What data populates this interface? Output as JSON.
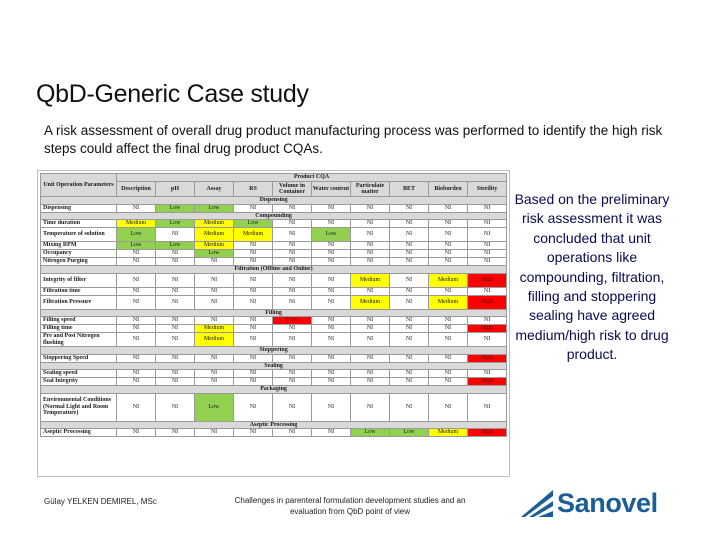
{
  "title": "QbD-Generic Case study",
  "intro": "A risk assessment of overall drug product manufacturing process was performed to identify the high risk steps could affect the final drug product CQAs.",
  "table": {
    "corner_label": "Unit Operation Parameters",
    "group_header": "Product CQA",
    "columns": [
      "Description",
      "pH",
      "Assay",
      "RS",
      "Volume in Container",
      "Water content",
      "Particulate matter",
      "BET",
      "Bioburden",
      "Sterility"
    ],
    "rows": [
      {
        "type": "section",
        "label": "Dispensing"
      },
      {
        "type": "row",
        "param": "Dispensing",
        "values": [
          "NI",
          "Low",
          "Low",
          "NI",
          "NI",
          "NI",
          "NI",
          "NI",
          "NI",
          "NI"
        ]
      },
      {
        "type": "section",
        "label": "Compounding"
      },
      {
        "type": "row",
        "param": "Time duration",
        "values": [
          "Medium",
          "Low",
          "Medium",
          "Low",
          "NI",
          "NI",
          "NI",
          "NI",
          "NI",
          "NI"
        ]
      },
      {
        "type": "row",
        "param": "Temperature of solution",
        "values": [
          "Low",
          "NI",
          "Medium",
          "Medium",
          "NI",
          "Low",
          "NI",
          "NI",
          "NI",
          "NI"
        ]
      },
      {
        "type": "row",
        "param": "Mixing RPM",
        "values": [
          "Low",
          "Low",
          "Medium",
          "NI",
          "NI",
          "NI",
          "NI",
          "NI",
          "NI",
          "NI"
        ]
      },
      {
        "type": "row",
        "param": "Occupancy",
        "values": [
          "NI",
          "NI",
          "Low",
          "NI",
          "NI",
          "NI",
          "NI",
          "NI",
          "NI",
          "NI"
        ]
      },
      {
        "type": "row",
        "param": "Nitrogen Purging",
        "values": [
          "NI",
          "NI",
          "NI",
          "NI",
          "NI",
          "NI",
          "NI",
          "NI",
          "NI",
          "NI"
        ]
      },
      {
        "type": "section",
        "label": "Filtration (Offline and Online)"
      },
      {
        "type": "row",
        "param": "Integrity of filter",
        "values": [
          "NI",
          "NI",
          "NI",
          "NI",
          "NI",
          "NI",
          "Medium",
          "NI",
          "Medium",
          "High"
        ]
      },
      {
        "type": "row",
        "param": "Filtration time",
        "values": [
          "NI",
          "NI",
          "NI",
          "NI",
          "NI",
          "NI",
          "NI",
          "NI",
          "NI",
          "NI"
        ]
      },
      {
        "type": "row",
        "param": "Filtration Pressure",
        "values": [
          "NI",
          "NI",
          "NI",
          "NI",
          "NI",
          "NI",
          "Medium",
          "NI",
          "Medium",
          "High"
        ]
      },
      {
        "type": "section",
        "label": "Filling"
      },
      {
        "type": "row",
        "param": "Filling speed",
        "values": [
          "NI",
          "NI",
          "NI",
          "NI",
          "High",
          "NI",
          "NI",
          "NI",
          "NI",
          "NI"
        ]
      },
      {
        "type": "row",
        "param": "Filling time",
        "values": [
          "NI",
          "NI",
          "Medium",
          "NI",
          "NI",
          "NI",
          "NI",
          "NI",
          "NI",
          "High"
        ]
      },
      {
        "type": "row",
        "param": "Pre and Post Nitrogen flushing",
        "values": [
          "NI",
          "NI",
          "Medium",
          "NI",
          "NI",
          "NI",
          "NI",
          "NI",
          "NI",
          "NI"
        ]
      },
      {
        "type": "section",
        "label": "Stoppering"
      },
      {
        "type": "row",
        "param": "Stoppering Speed",
        "values": [
          "NI",
          "NI",
          "NI",
          "NI",
          "NI",
          "NI",
          "NI",
          "NI",
          "NI",
          "High"
        ]
      },
      {
        "type": "section",
        "label": "Sealing"
      },
      {
        "type": "row",
        "param": "Sealing speed",
        "values": [
          "NI",
          "NI",
          "NI",
          "NI",
          "NI",
          "NI",
          "NI",
          "NI",
          "NI",
          "NI"
        ]
      },
      {
        "type": "row",
        "param": "Seal Integrity",
        "values": [
          "NI",
          "NI",
          "NI",
          "NI",
          "NI",
          "NI",
          "NI",
          "NI",
          "NI",
          "High"
        ]
      },
      {
        "type": "section",
        "label": "Packaging"
      },
      {
        "type": "row",
        "param": "Environmental Conditions (Normal Light and Room Temperature)",
        "values": [
          "NI",
          "NI",
          "Low",
          "NI",
          "NI",
          "NI",
          "NI",
          "NI",
          "NI",
          "NI"
        ]
      },
      {
        "type": "section",
        "label": "Aseptic Processing"
      },
      {
        "type": "row",
        "param": "Aseptic Processing",
        "values": [
          "NI",
          "NI",
          "NI",
          "NI",
          "NI",
          "NI",
          "Low",
          "Low",
          "Medium",
          "High"
        ]
      }
    ]
  },
  "side_text": "Based on the preliminary risk assessment it was concluded that unit operations like compounding, filtration, filling and stoppering sealing have agreed medium/high risk to drug product.",
  "footer": {
    "author": "Gülay YELKEN DEMIREL, MSc",
    "center": "Challenges in parenteral formulation development studies and an evaluation from QbD point of view",
    "logo_text": "Sanovel"
  },
  "colors": {
    "Low": "#92d050",
    "Medium": "#ffff00",
    "High": "#ff0000",
    "logo": "#1b5e97"
  }
}
